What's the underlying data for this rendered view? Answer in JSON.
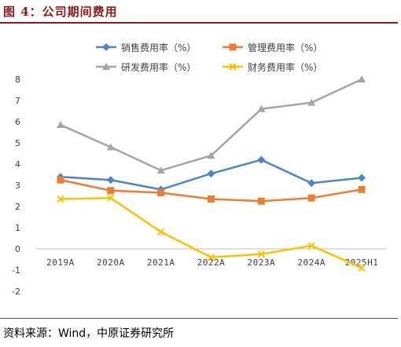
{
  "figure": {
    "title": "图 4：公司期间费用",
    "source": "资料来源：Wind，中原证券研究所"
  },
  "chart_data": {
    "type": "line",
    "categories": [
      "2019A",
      "2020A",
      "2021A",
      "2022A",
      "2023A",
      "2024A",
      "2025H1"
    ],
    "ylim": [
      -2,
      8
    ],
    "yticks": [
      -2,
      -1,
      0,
      1,
      2,
      3,
      4,
      5,
      6,
      7,
      8
    ],
    "grid": false,
    "legend_position": "top",
    "series": [
      {
        "name": "销售费用率（%）",
        "color": "#4a86c8",
        "marker": "diamond",
        "values": [
          3.4,
          3.25,
          2.8,
          3.55,
          4.2,
          3.1,
          3.35
        ]
      },
      {
        "name": "管理费用率（%）",
        "color": "#ed7d31",
        "marker": "square",
        "values": [
          3.25,
          2.75,
          2.65,
          2.35,
          2.25,
          2.4,
          2.8
        ]
      },
      {
        "name": "研发费用率（%）",
        "color": "#a5a5a5",
        "marker": "triangle",
        "values": [
          5.85,
          4.8,
          3.7,
          4.4,
          6.6,
          6.9,
          8.0
        ]
      },
      {
        "name": "财务费用率（%）",
        "color": "#ffc000",
        "marker": "x",
        "values": [
          2.35,
          2.4,
          0.8,
          -0.4,
          -0.25,
          0.15,
          -0.9
        ]
      }
    ]
  }
}
